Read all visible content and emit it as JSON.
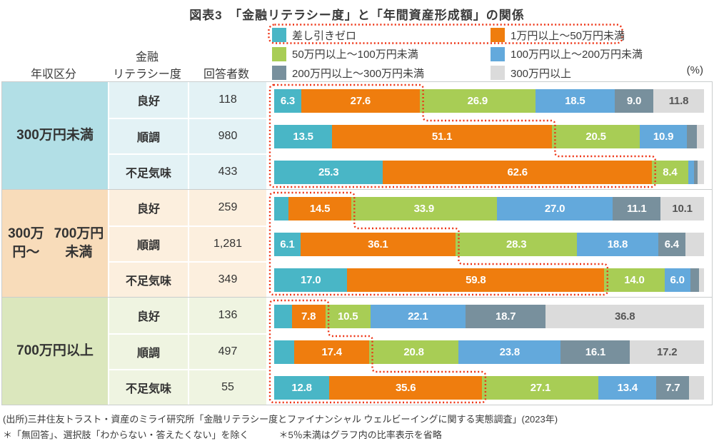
{
  "title": "図表3　「金融リテラシー度」と「年間資産形成額」の関係",
  "unit_label": "(%)",
  "headers": {
    "income": "年収区分",
    "literacy_line1": "金融",
    "literacy_line2": "リテラシー度",
    "respondents": "回答者数"
  },
  "legend": {
    "items": [
      {
        "label": "差し引きゼロ",
        "color": "#49b6c6"
      },
      {
        "label": "1万円以上～50万円未満",
        "color": "#ef7d0e"
      },
      {
        "label": "50万円以上～100万円未満",
        "color": "#a8cd55"
      },
      {
        "label": "100万円以上～200万円未満",
        "color": "#63a9dc"
      },
      {
        "label": "200万円以上～300万円未満",
        "color": "#78909d"
      },
      {
        "label": "300万円以上",
        "color": "#dbdbdb"
      }
    ],
    "highlight_first_row": true,
    "highlight_color": "#ee3213"
  },
  "chart_data": {
    "type": "bar",
    "variant": "horizontal-stacked",
    "unit": "%",
    "xlim": [
      0,
      100
    ],
    "label_threshold_note": "＊5％未満はグラフ内の比率表示を省略",
    "label_threshold": 5,
    "series_names": [
      "差し引きゼロ",
      "1万円以上～50万円未満",
      "50万円以上～100万円未満",
      "100万円以上～200万円未満",
      "200万円以上～300万円未満",
      "300万円以上"
    ],
    "highlight": {
      "description": "差し引きゼロ＋1万円以上～50万円未満の区分を赤点線で囲み強調",
      "color": "#ee3213"
    },
    "groups": [
      {
        "income_lines": [
          "300万円未満"
        ],
        "label_bg": "#b2dfe6",
        "cell_bg": "#e3f2f5",
        "rows": [
          {
            "literacy": "良好",
            "respondents": "118",
            "values": [
              6.3,
              27.6,
              26.9,
              18.5,
              9.0,
              11.8
            ]
          },
          {
            "literacy": "順調",
            "respondents": "980",
            "values": [
              13.5,
              51.1,
              20.5,
              10.9,
              2.3,
              1.7
            ]
          },
          {
            "literacy": "不足気味",
            "respondents": "433",
            "values": [
              25.3,
              62.6,
              8.4,
              1.4,
              0.8,
              1.5
            ]
          }
        ]
      },
      {
        "income_lines": [
          "300万円～",
          "700万円未満"
        ],
        "label_bg": "#f8dcba",
        "cell_bg": "#fcefde",
        "rows": [
          {
            "literacy": "良好",
            "respondents": "259",
            "values": [
              3.4,
              14.5,
              33.9,
              27.0,
              11.1,
              10.1
            ]
          },
          {
            "literacy": "順調",
            "respondents": "1,281",
            "values": [
              6.1,
              36.1,
              28.3,
              18.8,
              6.4,
              4.3
            ]
          },
          {
            "literacy": "不足気味",
            "respondents": "349",
            "values": [
              17.0,
              59.8,
              14.0,
              6.0,
              2.0,
              1.2
            ]
          }
        ]
      },
      {
        "income_lines": [
          "700万円以上"
        ],
        "label_bg": "#dbe7bd",
        "cell_bg": "#eff4e1",
        "rows": [
          {
            "literacy": "良好",
            "respondents": "136",
            "values": [
              4.1,
              7.8,
              10.5,
              22.1,
              18.7,
              36.8
            ]
          },
          {
            "literacy": "順調",
            "respondents": "497",
            "values": [
              4.7,
              17.4,
              20.8,
              23.8,
              16.1,
              17.2
            ]
          },
          {
            "literacy": "不足気味",
            "respondents": "55",
            "values": [
              12.8,
              35.6,
              27.1,
              13.4,
              7.7,
              3.4
            ]
          }
        ]
      }
    ]
  },
  "footer": {
    "source": "(出所)三井住友トラスト・資産のミライ研究所「金融リテラシー度とファイナンシャル ウェルビーイングに関する実態調査」(2023年)",
    "note1": "＊「無回答」、選択肢「わからない・答えたくない」を除く",
    "note2": "＊5％未満はグラフ内の比率表示を省略"
  }
}
